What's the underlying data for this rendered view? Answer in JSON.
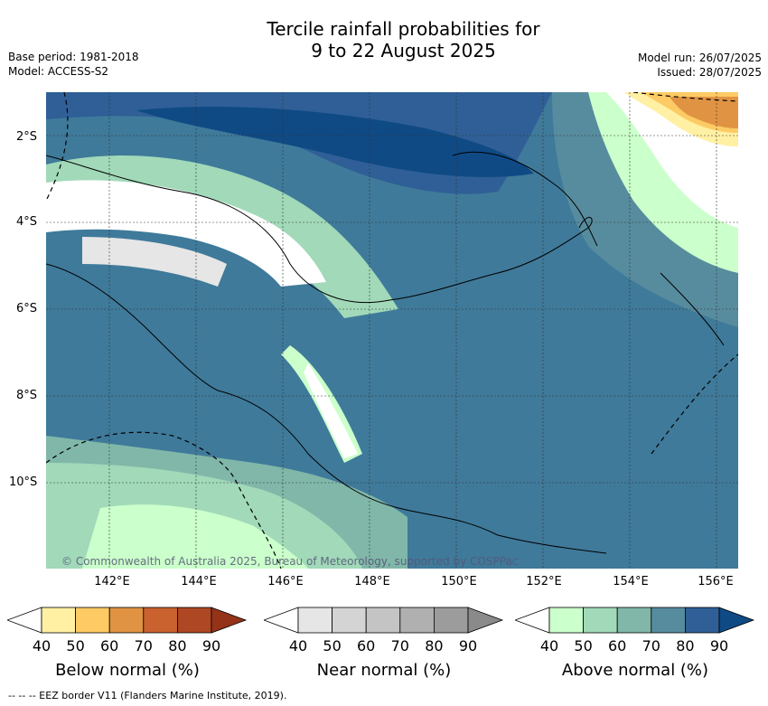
{
  "title": {
    "line1": "Tercile rainfall probabilities for",
    "line2": "9 to 22 August 2025"
  },
  "meta": {
    "base_period": "Base period: 1981-2018",
    "model": "Model: ACCESS-S2",
    "model_run": "Model run: 26/07/2025",
    "issued": "Issued: 28/07/2025"
  },
  "map": {
    "lat_labels": [
      "2°S",
      "4°S",
      "6°S",
      "8°S",
      "10°S"
    ],
    "lon_labels": [
      "142°E",
      "144°E",
      "146°E",
      "148°E",
      "150°E",
      "152°E",
      "154°E",
      "156°E"
    ],
    "credit": "© Commonwealth of Australia 2025, Bureau of Meteorology, supported by COSPPac"
  },
  "colorbars": {
    "below": {
      "title": "Below normal (%)",
      "ticks": [
        "40",
        "50",
        "60",
        "70",
        "80",
        "90"
      ],
      "colors": [
        "#ffffff",
        "#fff0a3",
        "#fdca63",
        "#e09343",
        "#c9622f",
        "#ad4724",
        "#943318"
      ]
    },
    "near": {
      "title": "Near normal (%)",
      "ticks": [
        "40",
        "50",
        "60",
        "70",
        "80",
        "90"
      ],
      "colors": [
        "#ffffff",
        "#e6e6e6",
        "#d4d4d4",
        "#c4c4c4",
        "#b0b0b0",
        "#9c9c9c",
        "#8a8a8a"
      ]
    },
    "above": {
      "title": "Above normal (%)",
      "ticks": [
        "40",
        "50",
        "60",
        "70",
        "80",
        "90"
      ],
      "colors": [
        "#ffffff",
        "#cbffcb",
        "#a1d9b9",
        "#80b7a9",
        "#578c9e",
        "#2f5f96",
        "#0f4a85"
      ]
    }
  },
  "footer": "-- -- -- EEZ border V11 (Flanders Marine Institute, 2019)."
}
